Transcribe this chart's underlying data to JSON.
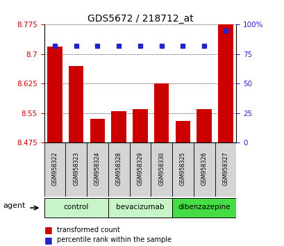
{
  "title": "GDS5672 / 218712_at",
  "samples": [
    "GSM958322",
    "GSM958323",
    "GSM958324",
    "GSM958328",
    "GSM958329",
    "GSM958330",
    "GSM958325",
    "GSM958326",
    "GSM958327"
  ],
  "red_values": [
    8.72,
    8.67,
    8.535,
    8.555,
    8.56,
    8.625,
    8.53,
    8.56,
    8.775
  ],
  "blue_values": [
    82,
    82,
    82,
    82,
    82,
    82,
    82,
    82,
    95
  ],
  "y_min": 8.475,
  "y_max": 8.775,
  "y_ticks": [
    8.475,
    8.55,
    8.625,
    8.7,
    8.775
  ],
  "right_y_ticks": [
    0,
    25,
    50,
    75,
    100
  ],
  "right_y_tick_labels": [
    "0",
    "25",
    "50",
    "75",
    "100%"
  ],
  "groups": [
    {
      "label": "control",
      "start": 0,
      "end": 3,
      "color": "#c8f5c8"
    },
    {
      "label": "bevacizumab",
      "start": 3,
      "end": 6,
      "color": "#c8f5c8"
    },
    {
      "label": "dibenzazepine",
      "start": 6,
      "end": 9,
      "color": "#44dd44"
    }
  ],
  "agent_label": "agent",
  "bar_color": "#cc0000",
  "dot_color": "#2222cc",
  "bar_width": 0.7,
  "background_color": "#ffffff",
  "tick_label_color_left": "#cc0000",
  "tick_label_color_right": "#2222cc",
  "legend_items": [
    "transformed count",
    "percentile rank within the sample"
  ],
  "sample_cell_color": "#d4d4d4"
}
